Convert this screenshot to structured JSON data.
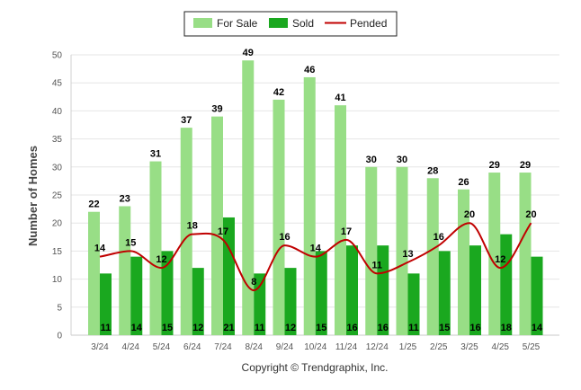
{
  "chart_data": {
    "type": "bar",
    "categories": [
      "3/24",
      "4/24",
      "5/24",
      "6/24",
      "7/24",
      "8/24",
      "9/24",
      "10/24",
      "11/24",
      "12/24",
      "1/25",
      "2/25",
      "3/25",
      "4/25",
      "5/25"
    ],
    "series": [
      {
        "name": "For Sale",
        "kind": "bar",
        "color": "#98de86",
        "values": [
          22,
          23,
          31,
          37,
          39,
          49,
          42,
          46,
          41,
          30,
          30,
          28,
          26,
          29,
          29
        ]
      },
      {
        "name": "Sold",
        "kind": "bar",
        "color": "#1aa81f",
        "values": [
          11,
          14,
          15,
          12,
          21,
          11,
          12,
          15,
          16,
          16,
          11,
          15,
          16,
          18,
          14
        ]
      },
      {
        "name": "Pended",
        "kind": "line",
        "color": "#c00000",
        "values": [
          14,
          15,
          12,
          18,
          17,
          8,
          16,
          14,
          17,
          11,
          13,
          16,
          20,
          12,
          20
        ]
      }
    ],
    "ylabel": "Number of Homes",
    "xlabel": "",
    "ylim": [
      0,
      50
    ],
    "yticks": [
      "0",
      "5",
      "10",
      "15",
      "20",
      "25",
      "30",
      "35",
      "40",
      "45",
      "50"
    ],
    "grid": true,
    "legend_position": "top-center"
  },
  "footer": {
    "copyright": "Copyright © Trendgraphix, Inc."
  }
}
